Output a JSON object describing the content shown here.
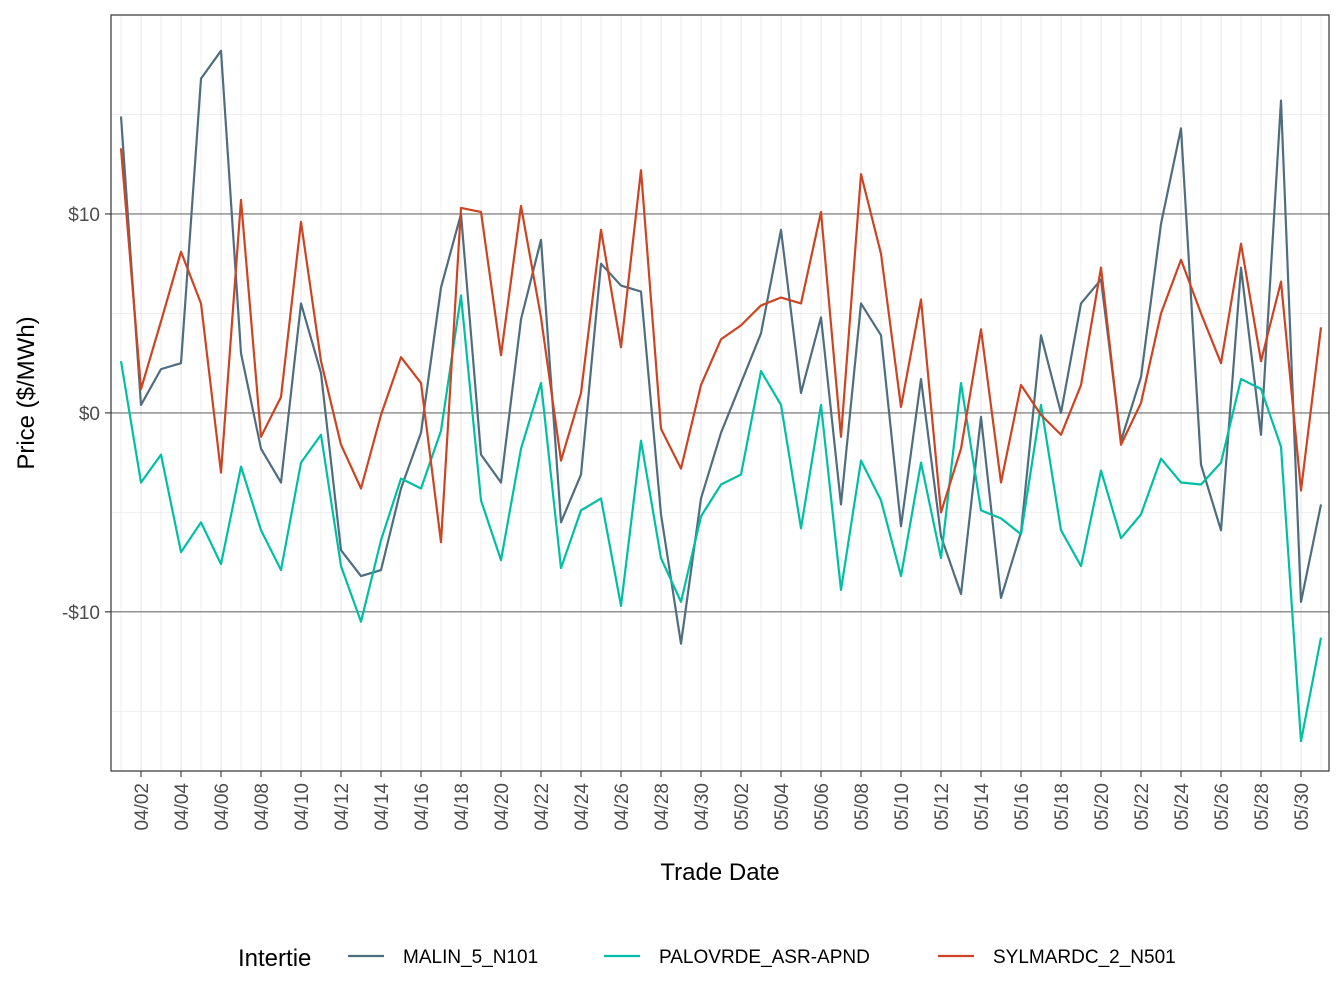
{
  "chart_data": {
    "type": "line",
    "title": "",
    "xlabel": "Trade Date",
    "ylabel": "Price ($/MWh)",
    "ylim": [
      -18,
      20
    ],
    "grid": true,
    "legend": {
      "title": "Intertie",
      "position": "bottom"
    },
    "x": [
      "04/01",
      "04/02",
      "04/03",
      "04/04",
      "04/05",
      "04/06",
      "04/07",
      "04/08",
      "04/09",
      "04/10",
      "04/11",
      "04/12",
      "04/13",
      "04/14",
      "04/15",
      "04/16",
      "04/17",
      "04/18",
      "04/19",
      "04/20",
      "04/21",
      "04/22",
      "04/23",
      "04/24",
      "04/25",
      "04/26",
      "04/27",
      "04/28",
      "04/29",
      "04/30",
      "05/01",
      "05/02",
      "05/03",
      "05/04",
      "05/05",
      "05/06",
      "05/07",
      "05/08",
      "05/09",
      "05/10",
      "05/11",
      "05/12",
      "05/13",
      "05/14",
      "05/15",
      "05/16",
      "05/17",
      "05/18",
      "05/19",
      "05/20",
      "05/21",
      "05/22",
      "05/23",
      "05/24",
      "05/25",
      "05/26",
      "05/27",
      "05/28",
      "05/29",
      "05/30",
      "05/31"
    ],
    "x_ticks": [
      "04/02",
      "04/04",
      "04/06",
      "04/08",
      "04/10",
      "04/12",
      "04/14",
      "04/16",
      "04/18",
      "04/20",
      "04/22",
      "04/24",
      "04/26",
      "04/28",
      "04/30",
      "05/02",
      "05/04",
      "05/06",
      "05/08",
      "05/10",
      "05/12",
      "05/14",
      "05/16",
      "05/18",
      "05/20",
      "05/22",
      "05/24",
      "05/26",
      "05/28",
      "05/30"
    ],
    "y_ticks": [
      {
        "value": 10,
        "label": "$10"
      },
      {
        "value": 0,
        "label": "$0"
      },
      {
        "value": -10,
        "label": "-$10"
      }
    ],
    "series": [
      {
        "name": "MALIN_5_N101",
        "color": "#4e6e80",
        "values": [
          14.9,
          0.4,
          2.2,
          2.5,
          16.8,
          18.2,
          3.0,
          -1.8,
          -3.5,
          5.5,
          2.0,
          -6.9,
          -8.2,
          -7.9,
          -3.8,
          -1.0,
          6.3,
          10.0,
          -2.1,
          -3.5,
          4.7,
          8.7,
          -5.5,
          -3.1,
          7.5,
          6.4,
          6.1,
          -5.1,
          -11.6,
          -4.3,
          -1.0,
          1.5,
          4.0,
          9.2,
          1.0,
          4.8,
          -4.6,
          5.5,
          3.9,
          -5.7,
          1.7,
          -6.2,
          -9.1,
          -0.2,
          -9.3,
          -6.0,
          3.9,
          0.0,
          5.5,
          6.7,
          -1.4,
          1.8,
          9.5,
          14.3,
          -2.6,
          -5.9,
          7.3,
          -1.1,
          15.7,
          -9.5,
          -4.6
        ]
      },
      {
        "name": "PALOVRDE_ASR-APND",
        "color": "#00bfa5",
        "values": [
          2.6,
          -3.5,
          -2.1,
          -7.0,
          -5.5,
          -7.6,
          -2.7,
          -5.9,
          -7.9,
          -2.5,
          -1.1,
          -7.7,
          -10.5,
          -6.4,
          -3.3,
          -3.8,
          -0.9,
          5.9,
          -4.4,
          -7.4,
          -1.8,
          1.5,
          -7.8,
          -4.9,
          -4.3,
          -9.7,
          -1.4,
          -7.3,
          -9.5,
          -5.2,
          -3.6,
          -3.1,
          2.1,
          0.4,
          -5.8,
          0.4,
          -8.9,
          -2.4,
          -4.4,
          -8.2,
          -2.5,
          -7.3,
          1.5,
          -4.9,
          -5.3,
          -6.1,
          0.4,
          -5.9,
          -7.7,
          -2.9,
          -6.3,
          -5.1,
          -2.3,
          -3.5,
          -3.6,
          -2.5,
          1.7,
          1.2,
          -1.7,
          -16.5,
          -11.3
        ]
      },
      {
        "name": "SYLMARDC_2_N501",
        "color": "#cc4422",
        "values": [
          13.3,
          1.2,
          4.6,
          8.1,
          5.5,
          -3.0,
          10.7,
          -1.2,
          0.8,
          9.6,
          2.6,
          -1.6,
          -3.8,
          -0.1,
          2.8,
          1.5,
          -6.5,
          10.3,
          10.1,
          2.9,
          10.4,
          4.8,
          -2.4,
          1.0,
          9.2,
          3.3,
          12.2,
          -0.8,
          -2.8,
          1.4,
          3.7,
          4.4,
          5.4,
          5.8,
          5.5,
          10.1,
          -1.2,
          12.0,
          8.0,
          0.3,
          5.7,
          -5.0,
          -1.8,
          4.2,
          -3.5,
          1.4,
          -0.1,
          -1.1,
          1.4,
          7.3,
          -1.6,
          0.5,
          5.0,
          7.7,
          5.0,
          2.5,
          8.5,
          2.6,
          6.6,
          -3.9,
          4.3
        ]
      }
    ]
  }
}
